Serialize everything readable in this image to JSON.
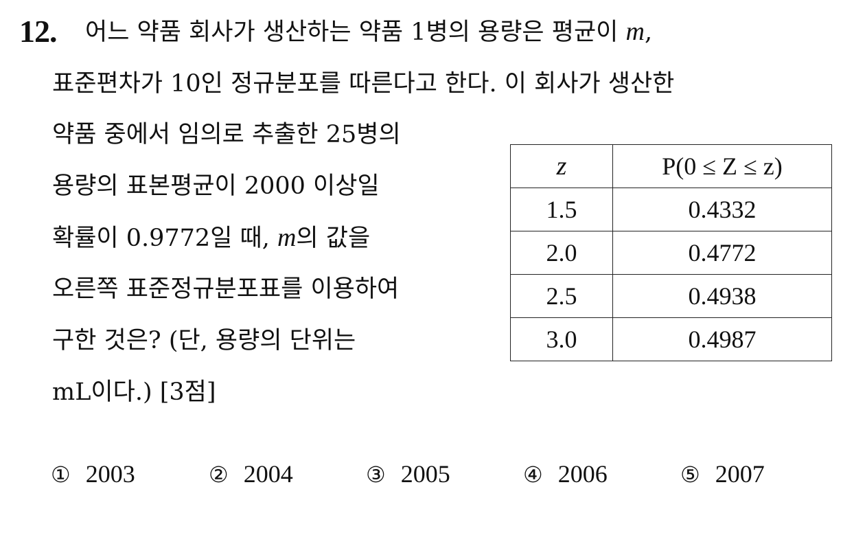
{
  "question": {
    "number": "12.",
    "line1_pre": "어느 약품 회사가 생산하는 약품 1병의 용량은 평균이 ",
    "line1_var": "m",
    "line1_post": ",",
    "line2": "표준편차가 10인 정규분포를 따른다고 한다. 이 회사가 생산한",
    "narrow_lines": {
      "n1": "약품 중에서 임의로 추출한 25병의",
      "n2": "용량의 표본평균이 2000 이상일",
      "n3_pre": "확률이 0.9772일 때, ",
      "n3_var": "m",
      "n3_post": "의 값을",
      "n4": "오른쪽 표준정규분포표를 이용하여",
      "n5": "구한 것은? (단, 용량의 단위는",
      "n6": "mL이다.) [3점]"
    }
  },
  "table": {
    "header_z": "z",
    "header_p": "P(0 ≤ Z ≤ z)",
    "rows": [
      {
        "z": "1.5",
        "p": "0.4332"
      },
      {
        "z": "2.0",
        "p": "0.4772"
      },
      {
        "z": "2.5",
        "p": "0.4938"
      },
      {
        "z": "3.0",
        "p": "0.4987"
      }
    ]
  },
  "choices": [
    {
      "mark": "①",
      "value": "2003"
    },
    {
      "mark": "②",
      "value": "2004"
    },
    {
      "mark": "③",
      "value": "2005"
    },
    {
      "mark": "④",
      "value": "2006"
    },
    {
      "mark": "⑤",
      "value": "2007"
    }
  ]
}
